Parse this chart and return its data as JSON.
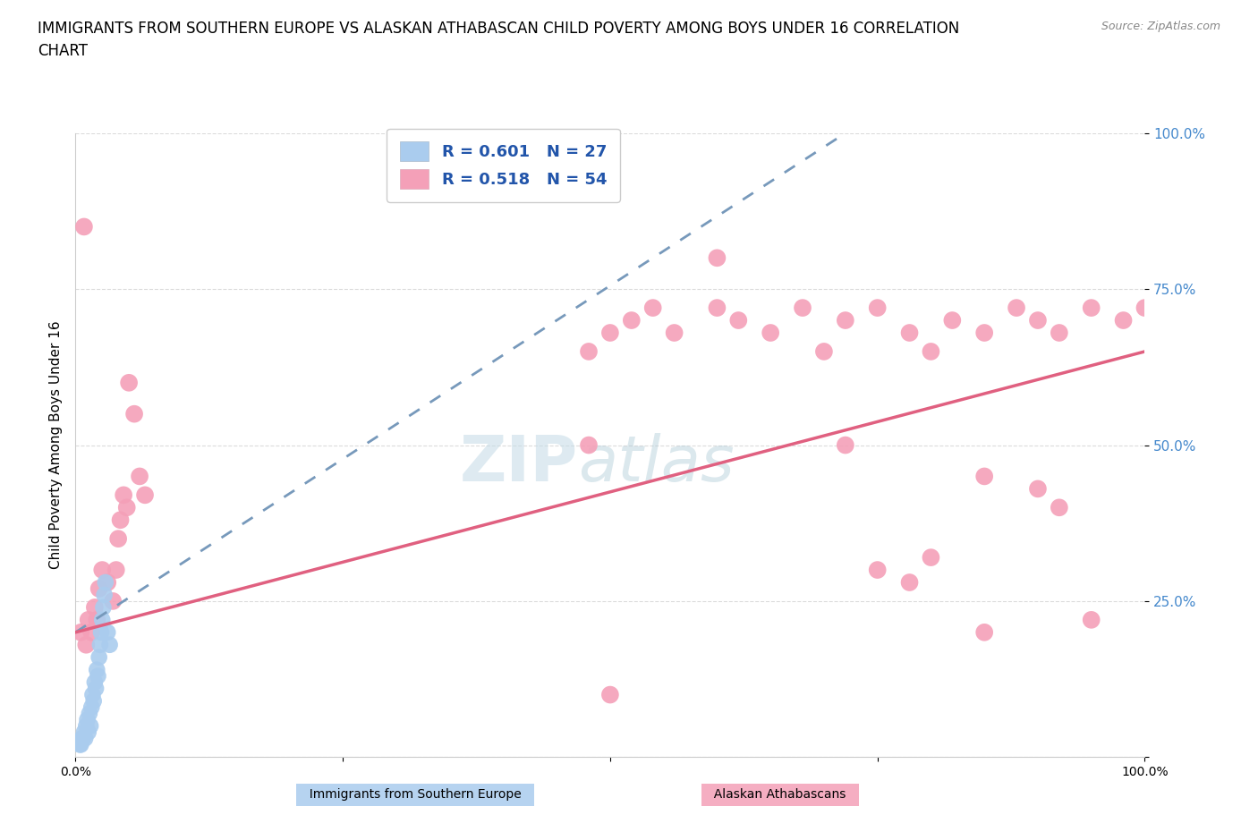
{
  "title": "IMMIGRANTS FROM SOUTHERN EUROPE VS ALASKAN ATHABASCAN CHILD POVERTY AMONG BOYS UNDER 16 CORRELATION\nCHART",
  "source": "Source: ZipAtlas.com",
  "ylabel": "Child Poverty Among Boys Under 16",
  "watermark_zip": "ZIP",
  "watermark_atlas": "atlas",
  "blue_dots": [
    [
      0.005,
      0.02
    ],
    [
      0.007,
      0.03
    ],
    [
      0.008,
      0.04
    ],
    [
      0.009,
      0.03
    ],
    [
      0.01,
      0.05
    ],
    [
      0.011,
      0.06
    ],
    [
      0.012,
      0.04
    ],
    [
      0.013,
      0.07
    ],
    [
      0.014,
      0.05
    ],
    [
      0.015,
      0.08
    ],
    [
      0.016,
      0.1
    ],
    [
      0.017,
      0.09
    ],
    [
      0.018,
      0.12
    ],
    [
      0.019,
      0.11
    ],
    [
      0.02,
      0.14
    ],
    [
      0.021,
      0.13
    ],
    [
      0.022,
      0.16
    ],
    [
      0.023,
      0.18
    ],
    [
      0.024,
      0.2
    ],
    [
      0.025,
      0.22
    ],
    [
      0.026,
      0.24
    ],
    [
      0.027,
      0.26
    ],
    [
      0.028,
      0.28
    ],
    [
      0.03,
      0.2
    ],
    [
      0.032,
      0.18
    ],
    [
      0.006,
      0.03
    ],
    [
      0.004,
      0.02
    ]
  ],
  "pink_dots": [
    [
      0.005,
      0.2
    ],
    [
      0.01,
      0.18
    ],
    [
      0.012,
      0.22
    ],
    [
      0.015,
      0.2
    ],
    [
      0.018,
      0.24
    ],
    [
      0.02,
      0.22
    ],
    [
      0.022,
      0.27
    ],
    [
      0.025,
      0.3
    ],
    [
      0.03,
      0.28
    ],
    [
      0.035,
      0.25
    ],
    [
      0.038,
      0.3
    ],
    [
      0.04,
      0.35
    ],
    [
      0.042,
      0.38
    ],
    [
      0.045,
      0.42
    ],
    [
      0.048,
      0.4
    ],
    [
      0.05,
      0.6
    ],
    [
      0.055,
      0.55
    ],
    [
      0.06,
      0.45
    ],
    [
      0.065,
      0.42
    ],
    [
      0.008,
      0.85
    ],
    [
      0.48,
      0.65
    ],
    [
      0.5,
      0.68
    ],
    [
      0.52,
      0.7
    ],
    [
      0.54,
      0.72
    ],
    [
      0.56,
      0.68
    ],
    [
      0.6,
      0.72
    ],
    [
      0.62,
      0.7
    ],
    [
      0.65,
      0.68
    ],
    [
      0.68,
      0.72
    ],
    [
      0.7,
      0.65
    ],
    [
      0.72,
      0.7
    ],
    [
      0.75,
      0.72
    ],
    [
      0.78,
      0.68
    ],
    [
      0.8,
      0.65
    ],
    [
      0.82,
      0.7
    ],
    [
      0.85,
      0.68
    ],
    [
      0.88,
      0.72
    ],
    [
      0.9,
      0.7
    ],
    [
      0.92,
      0.68
    ],
    [
      0.95,
      0.72
    ],
    [
      0.98,
      0.7
    ],
    [
      1.0,
      0.72
    ],
    [
      0.6,
      0.8
    ],
    [
      0.48,
      0.5
    ],
    [
      0.72,
      0.5
    ],
    [
      0.85,
      0.45
    ],
    [
      0.9,
      0.43
    ],
    [
      0.92,
      0.4
    ],
    [
      0.75,
      0.3
    ],
    [
      0.78,
      0.28
    ],
    [
      0.8,
      0.32
    ],
    [
      0.5,
      0.1
    ],
    [
      0.95,
      0.22
    ],
    [
      0.85,
      0.2
    ]
  ],
  "blue_line_x": [
    0.0,
    0.72
  ],
  "blue_line_y": [
    0.2,
    1.0
  ],
  "pink_line_x": [
    0.0,
    1.0
  ],
  "pink_line_y": [
    0.2,
    0.65
  ],
  "blue_dot_color": "#aaccee",
  "pink_dot_color": "#f4a0b8",
  "blue_line_color": "#7799bb",
  "pink_line_color": "#e06080",
  "grid_color": "#cccccc",
  "background_color": "#ffffff",
  "title_fontsize": 12,
  "axis_label_fontsize": 11,
  "legend_fontsize": 13,
  "R_blue": "0.601",
  "N_blue": "27",
  "R_pink": "0.518",
  "N_pink": "54",
  "ytick_positions": [
    0.0,
    0.25,
    0.5,
    0.75,
    1.0
  ],
  "ytick_labels": [
    "",
    "25.0%",
    "50.0%",
    "75.0%",
    "100.0%"
  ],
  "xtick_positions": [
    0.0,
    0.25,
    0.5,
    0.75,
    1.0
  ],
  "xtick_labels": [
    "0.0%",
    "",
    "",
    "",
    "100.0%"
  ]
}
